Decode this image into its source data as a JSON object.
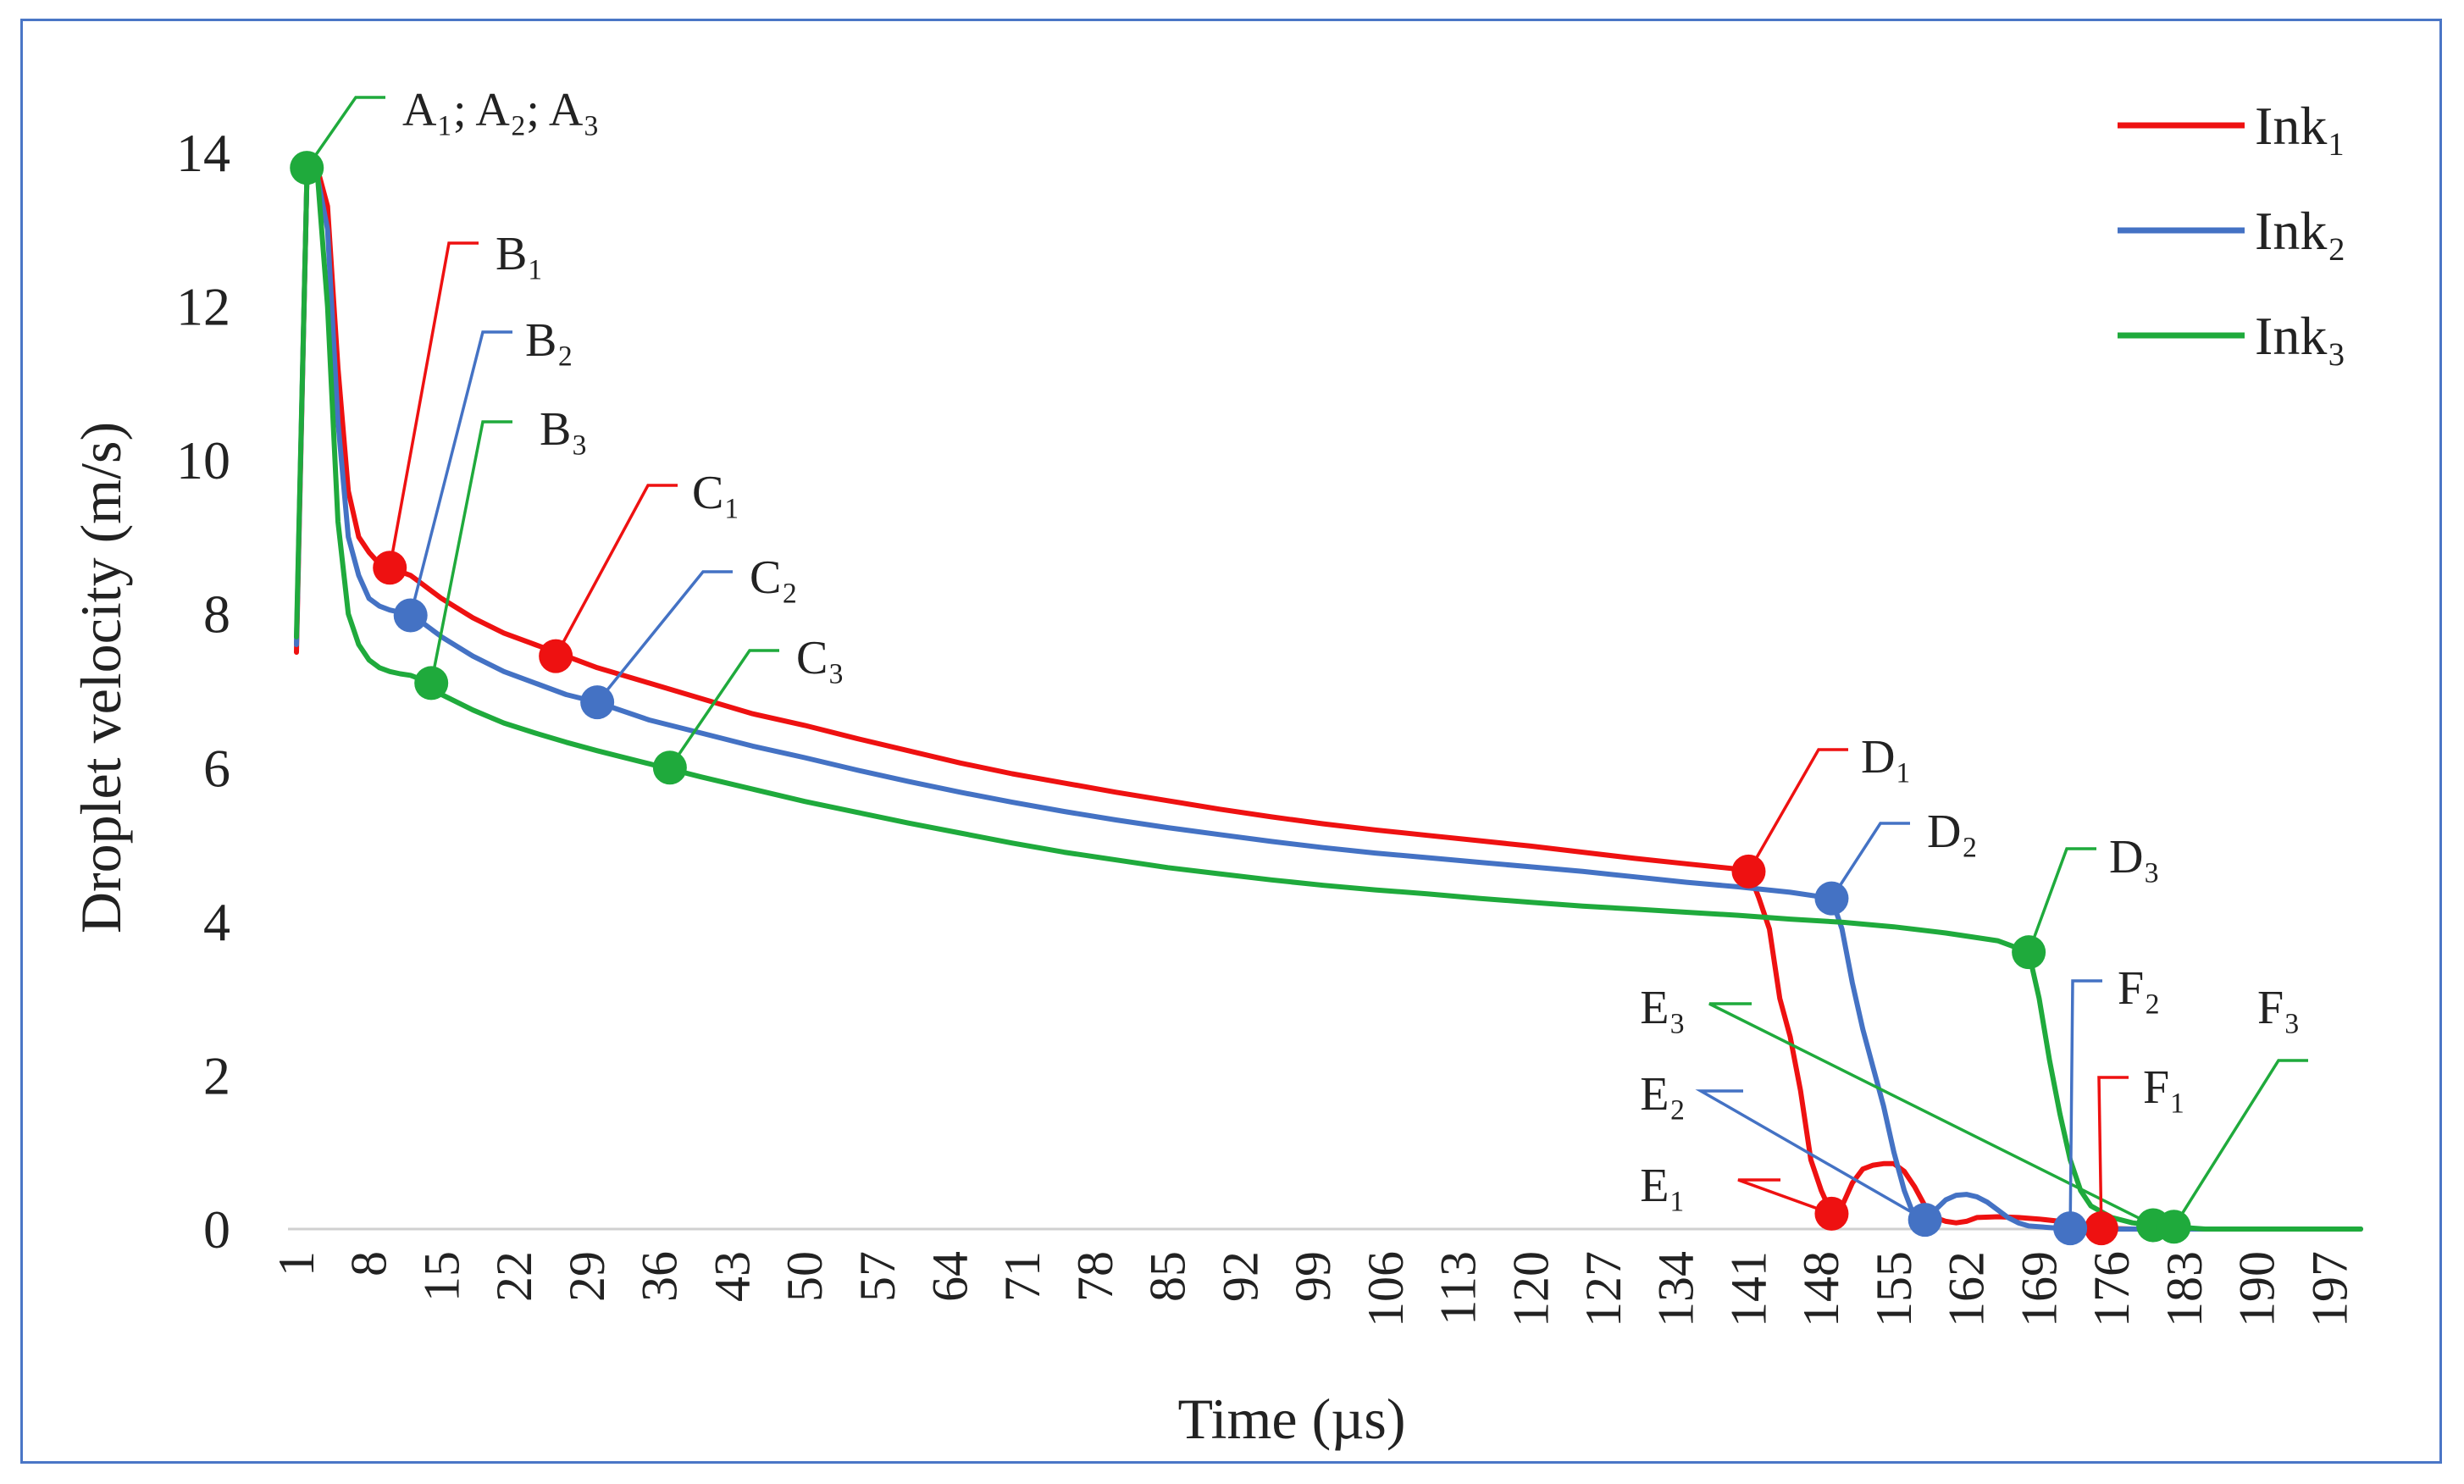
{
  "chart_data": {
    "type": "line",
    "xlabel": "Time (µs)",
    "ylabel": "Droplet velocity (m/s)",
    "xlim": [
      1,
      200
    ],
    "ylim": [
      0,
      14
    ],
    "yticks": [
      "0",
      "2",
      "4",
      "6",
      "8",
      "10",
      "12",
      "14"
    ],
    "xticks": [
      "1",
      "8",
      "15",
      "22",
      "29",
      "36",
      "43",
      "50",
      "57",
      "64",
      "71",
      "78",
      "85",
      "92",
      "99",
      "106",
      "113",
      "120",
      "127",
      "134",
      "141",
      "148",
      "155",
      "162",
      "169",
      "176",
      "183",
      "190",
      "197"
    ],
    "legend_position": "top-right",
    "series": [
      {
        "name": "Ink₁",
        "color": "#ee1111",
        "points": [
          [
            1,
            7.5
          ],
          [
            2,
            13.6
          ],
          [
            3,
            13.8
          ],
          [
            4,
            13.3
          ],
          [
            5,
            11.2
          ],
          [
            6,
            9.6
          ],
          [
            7,
            9.0
          ],
          [
            8,
            8.8
          ],
          [
            9,
            8.65
          ],
          [
            10,
            8.6
          ],
          [
            11,
            8.55
          ],
          [
            12,
            8.5
          ],
          [
            13,
            8.4
          ],
          [
            15,
            8.2
          ],
          [
            18,
            7.95
          ],
          [
            21,
            7.75
          ],
          [
            24,
            7.6
          ],
          [
            27,
            7.45
          ],
          [
            30,
            7.3
          ],
          [
            35,
            7.1
          ],
          [
            40,
            6.9
          ],
          [
            45,
            6.7
          ],
          [
            50,
            6.55
          ],
          [
            55,
            6.38
          ],
          [
            60,
            6.22
          ],
          [
            65,
            6.06
          ],
          [
            70,
            5.92
          ],
          [
            75,
            5.8
          ],
          [
            80,
            5.68
          ],
          [
            85,
            5.57
          ],
          [
            90,
            5.46
          ],
          [
            95,
            5.36
          ],
          [
            100,
            5.27
          ],
          [
            105,
            5.19
          ],
          [
            110,
            5.12
          ],
          [
            115,
            5.05
          ],
          [
            120,
            4.98
          ],
          [
            125,
            4.9
          ],
          [
            130,
            4.82
          ],
          [
            135,
            4.75
          ],
          [
            140,
            4.68
          ],
          [
            141,
            4.65
          ],
          [
            142,
            4.3
          ],
          [
            143,
            3.9
          ],
          [
            144,
            3.0
          ],
          [
            145,
            2.5
          ],
          [
            146,
            1.8
          ],
          [
            147,
            0.9
          ],
          [
            148,
            0.5
          ],
          [
            149,
            0.2
          ],
          [
            150,
            0.3
          ],
          [
            151,
            0.6
          ],
          [
            152,
            0.78
          ],
          [
            153,
            0.83
          ],
          [
            154,
            0.85
          ],
          [
            155,
            0.85
          ],
          [
            156,
            0.75
          ],
          [
            157,
            0.55
          ],
          [
            158,
            0.3
          ],
          [
            159,
            0.15
          ],
          [
            160,
            0.1
          ],
          [
            161,
            0.08
          ],
          [
            162,
            0.1
          ],
          [
            163,
            0.15
          ],
          [
            165,
            0.16
          ],
          [
            167,
            0.15
          ],
          [
            169,
            0.13
          ],
          [
            171,
            0.1
          ],
          [
            173,
            0.05
          ],
          [
            174,
            0.02
          ],
          [
            175,
            0.01
          ],
          [
            178,
            0
          ],
          [
            200,
            0
          ]
        ]
      },
      {
        "name": "Ink₂",
        "color": "#4472c4",
        "points": [
          [
            1,
            7.6
          ],
          [
            2,
            13.6
          ],
          [
            3,
            13.7
          ],
          [
            4,
            13.0
          ],
          [
            5,
            10.5
          ],
          [
            6,
            9.0
          ],
          [
            7,
            8.5
          ],
          [
            8,
            8.2
          ],
          [
            9,
            8.1
          ],
          [
            10,
            8.05
          ],
          [
            11,
            8.02
          ],
          [
            12,
            7.98
          ],
          [
            13,
            7.9
          ],
          [
            15,
            7.7
          ],
          [
            18,
            7.45
          ],
          [
            21,
            7.25
          ],
          [
            24,
            7.1
          ],
          [
            27,
            6.95
          ],
          [
            30,
            6.85
          ],
          [
            35,
            6.62
          ],
          [
            40,
            6.45
          ],
          [
            45,
            6.28
          ],
          [
            50,
            6.13
          ],
          [
            55,
            5.97
          ],
          [
            60,
            5.82
          ],
          [
            65,
            5.68
          ],
          [
            70,
            5.55
          ],
          [
            75,
            5.43
          ],
          [
            80,
            5.32
          ],
          [
            85,
            5.22
          ],
          [
            90,
            5.13
          ],
          [
            95,
            5.04
          ],
          [
            100,
            4.96
          ],
          [
            105,
            4.89
          ],
          [
            110,
            4.83
          ],
          [
            115,
            4.77
          ],
          [
            120,
            4.71
          ],
          [
            125,
            4.65
          ],
          [
            130,
            4.58
          ],
          [
            135,
            4.51
          ],
          [
            140,
            4.45
          ],
          [
            145,
            4.38
          ],
          [
            148,
            4.32
          ],
          [
            149,
            4.3
          ],
          [
            150,
            3.9
          ],
          [
            151,
            3.2
          ],
          [
            152,
            2.6
          ],
          [
            153,
            2.1
          ],
          [
            154,
            1.6
          ],
          [
            155,
            1.0
          ],
          [
            156,
            0.5
          ],
          [
            157,
            0.15
          ],
          [
            158,
            0.12
          ],
          [
            159,
            0.25
          ],
          [
            160,
            0.38
          ],
          [
            161,
            0.44
          ],
          [
            162,
            0.45
          ],
          [
            163,
            0.42
          ],
          [
            164,
            0.35
          ],
          [
            165,
            0.25
          ],
          [
            166,
            0.15
          ],
          [
            167,
            0.08
          ],
          [
            168,
            0.04
          ],
          [
            170,
            0.02
          ],
          [
            172,
            0
          ],
          [
            200,
            0
          ]
        ]
      },
      {
        "name": "Ink₃",
        "color": "#1faa3c",
        "points": [
          [
            1,
            7.7
          ],
          [
            2,
            13.6
          ],
          [
            3,
            13.75
          ],
          [
            4,
            12.0
          ],
          [
            5,
            9.2
          ],
          [
            6,
            8.0
          ],
          [
            7,
            7.6
          ],
          [
            8,
            7.4
          ],
          [
            9,
            7.3
          ],
          [
            10,
            7.25
          ],
          [
            11,
            7.22
          ],
          [
            12,
            7.2
          ],
          [
            13,
            7.15
          ],
          [
            15,
            6.95
          ],
          [
            18,
            6.75
          ],
          [
            21,
            6.58
          ],
          [
            24,
            6.45
          ],
          [
            27,
            6.33
          ],
          [
            30,
            6.22
          ],
          [
            35,
            6.05
          ],
          [
            40,
            5.88
          ],
          [
            45,
            5.72
          ],
          [
            50,
            5.56
          ],
          [
            55,
            5.42
          ],
          [
            60,
            5.28
          ],
          [
            65,
            5.15
          ],
          [
            70,
            5.02
          ],
          [
            75,
            4.9
          ],
          [
            80,
            4.8
          ],
          [
            85,
            4.7
          ],
          [
            90,
            4.62
          ],
          [
            95,
            4.54
          ],
          [
            100,
            4.47
          ],
          [
            105,
            4.41
          ],
          [
            110,
            4.36
          ],
          [
            115,
            4.3
          ],
          [
            120,
            4.25
          ],
          [
            125,
            4.2
          ],
          [
            130,
            4.16
          ],
          [
            135,
            4.12
          ],
          [
            140,
            4.08
          ],
          [
            145,
            4.03
          ],
          [
            150,
            3.99
          ],
          [
            155,
            3.93
          ],
          [
            160,
            3.85
          ],
          [
            165,
            3.75
          ],
          [
            167,
            3.65
          ],
          [
            168,
            3.6
          ],
          [
            169,
            3.0
          ],
          [
            170,
            2.2
          ],
          [
            171,
            1.5
          ],
          [
            172,
            0.9
          ],
          [
            173,
            0.5
          ],
          [
            174,
            0.3
          ],
          [
            176,
            0.15
          ],
          [
            178,
            0.08
          ],
          [
            180,
            0.05
          ],
          [
            182,
            0.03
          ],
          [
            183,
            0.02
          ],
          [
            185,
            0
          ],
          [
            200,
            0
          ]
        ]
      }
    ],
    "annotations": [
      {
        "label": "A₁; A₂; A₃",
        "series": 2,
        "x": 2,
        "y": 13.8,
        "color": "#1faa3c",
        "marker_color": "#1faa3c"
      },
      {
        "label": "B₁",
        "series": 0,
        "x": 10,
        "y": 8.6,
        "color": "#ee1111",
        "marker_color": "#ee1111"
      },
      {
        "label": "B₂",
        "series": 1,
        "x": 12,
        "y": 7.98,
        "color": "#4472c4",
        "marker_color": "#4472c4"
      },
      {
        "label": "B₃",
        "series": 2,
        "x": 14,
        "y": 7.1,
        "color": "#1faa3c",
        "marker_color": "#1faa3c"
      },
      {
        "label": "C₁",
        "series": 0,
        "x": 26,
        "y": 7.45,
        "color": "#ee1111",
        "marker_color": "#ee1111"
      },
      {
        "label": "C₂",
        "series": 1,
        "x": 30,
        "y": 6.85,
        "color": "#4472c4",
        "marker_color": "#4472c4"
      },
      {
        "label": "C₃",
        "series": 2,
        "x": 37,
        "y": 6.0,
        "color": "#1faa3c",
        "marker_color": "#1faa3c"
      },
      {
        "label": "D₁",
        "series": 0,
        "x": 141,
        "y": 4.65,
        "color": "#ee1111",
        "marker_color": "#ee1111"
      },
      {
        "label": "D₂",
        "series": 1,
        "x": 149,
        "y": 4.3,
        "color": "#4472c4",
        "marker_color": "#4472c4"
      },
      {
        "label": "D₃",
        "series": 2,
        "x": 168,
        "y": 3.6,
        "color": "#1faa3c",
        "marker_color": "#1faa3c"
      },
      {
        "label": "E₁",
        "series": 0,
        "x": 149,
        "y": 0.2,
        "color": "#ee1111",
        "marker_color": "#ee1111"
      },
      {
        "label": "E₂",
        "series": 1,
        "x": 158,
        "y": 0.12,
        "color": "#4472c4",
        "marker_color": "#4472c4"
      },
      {
        "label": "E₃",
        "series": 2,
        "x": 180,
        "y": 0.05,
        "color": "#1faa3c",
        "marker_color": "#1faa3c"
      },
      {
        "label": "F₁",
        "series": 0,
        "x": 175,
        "y": 0.01,
        "color": "#ee1111",
        "marker_color": "#ee1111"
      },
      {
        "label": "F₂",
        "series": 1,
        "x": 172,
        "y": 0.01,
        "color": "#4472c4",
        "marker_color": "#4472c4"
      },
      {
        "label": "F₃",
        "series": 2,
        "x": 182,
        "y": 0.03,
        "color": "#1faa3c",
        "marker_color": "#1faa3c"
      }
    ]
  }
}
